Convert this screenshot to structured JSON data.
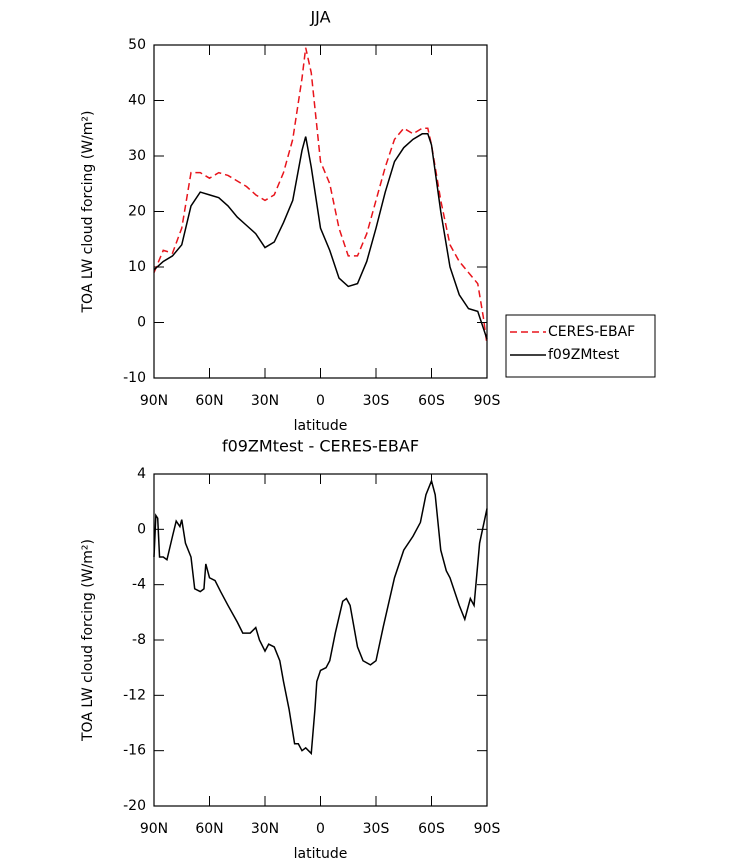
{
  "chart_data": [
    {
      "type": "line",
      "title": "JJA",
      "xlabel": "latitude",
      "ylabel": "TOA LW cloud forcing (W/m²)",
      "x": [
        90,
        85,
        80,
        75,
        70,
        65,
        60,
        55,
        50,
        45,
        40,
        35,
        30,
        25,
        20,
        15,
        10,
        8,
        5,
        0,
        -5,
        -10,
        -15,
        -20,
        -25,
        -30,
        -35,
        -40,
        -45,
        -50,
        -55,
        -58,
        -60,
        -65,
        -70,
        -75,
        -80,
        -85,
        -88,
        -90
      ],
      "series": [
        {
          "name": "CERES-EBAF",
          "color": "#e8141b",
          "dashed": true,
          "values": [
            9,
            13,
            12.5,
            17,
            27,
            27,
            26,
            27,
            26.5,
            25.5,
            24.5,
            23,
            22,
            23,
            27,
            33,
            44,
            49.5,
            45,
            29,
            25,
            17,
            12,
            12,
            16,
            22,
            28,
            33,
            35,
            34,
            35,
            35,
            32,
            22,
            14,
            11,
            9,
            7,
            1,
            -4
          ]
        },
        {
          "name": "f09ZMtest",
          "color": "#000000",
          "dashed": false,
          "values": [
            9.5,
            11,
            12,
            14,
            21,
            23.5,
            23,
            22.5,
            21,
            19,
            17.5,
            16,
            13.5,
            14.5,
            18,
            22,
            31,
            33.5,
            28,
            17,
            13,
            8,
            6.5,
            7,
            11,
            17,
            23.5,
            29,
            31.5,
            33,
            34,
            34,
            32,
            20,
            10,
            5,
            2.5,
            2,
            -1,
            -3
          ]
        }
      ],
      "xlim": [
        90,
        -90
      ],
      "xticks": [
        {
          "value": 90,
          "label": "90N"
        },
        {
          "value": 60,
          "label": "60N"
        },
        {
          "value": 30,
          "label": "30N"
        },
        0,
        {
          "value": -30,
          "label": "30S"
        },
        {
          "value": -60,
          "label": "60S"
        },
        {
          "value": -90,
          "label": "90S"
        }
      ],
      "ylim": [
        -10,
        50
      ],
      "yticks": [
        -10,
        0,
        10,
        20,
        30,
        40,
        50
      ],
      "legend": "outside-right"
    },
    {
      "type": "line",
      "title": "f09ZMtest - CERES-EBAF",
      "xlabel": "latitude",
      "ylabel": "TOA LW cloud forcing (W/m²)",
      "x": [
        90,
        89,
        88,
        87,
        85,
        83,
        80,
        78,
        76,
        75,
        73,
        70,
        68,
        65,
        63,
        62,
        60,
        57,
        54,
        50,
        45,
        42,
        38,
        35,
        33,
        30,
        28,
        25,
        22,
        20,
        17,
        14,
        12,
        10,
        8,
        5,
        3,
        2,
        0,
        -3,
        -5,
        -8,
        -12,
        -14,
        -16,
        -18,
        -20,
        -23,
        -27,
        -30,
        -34,
        -40,
        -45,
        -50,
        -54,
        -57,
        -60,
        -62,
        -65,
        -68,
        -70,
        -75,
        -78,
        -81,
        -83,
        -86,
        -90
      ],
      "values": [
        -2,
        1,
        0.8,
        -2,
        -2,
        -2.2,
        -0.5,
        0.6,
        0.2,
        0.7,
        -1,
        -2,
        -4.3,
        -4.5,
        -4.3,
        -2.5,
        -3.5,
        -3.7,
        -4.5,
        -5.5,
        -6.7,
        -7.5,
        -7.5,
        -7.1,
        -8,
        -8.8,
        -8.3,
        -8.5,
        -9.5,
        -11,
        -13,
        -15.5,
        -15.5,
        -16,
        -15.8,
        -16.2,
        -13,
        -11,
        -10.2,
        -10,
        -9.5,
        -7.5,
        -5.2,
        -5,
        -5.5,
        -7,
        -8.5,
        -9.5,
        -9.8,
        -9.5,
        -7,
        -3.5,
        -1.5,
        -0.5,
        0.5,
        2.5,
        3.5,
        2.5,
        -1.5,
        -3,
        -3.5,
        -5.5,
        -6.5,
        -5,
        -5.5,
        -1,
        1.5
      ],
      "color": "#000000",
      "xlim": [
        90,
        -90
      ],
      "xticks": [
        {
          "value": 90,
          "label": "90N"
        },
        {
          "value": 60,
          "label": "60N"
        },
        {
          "value": 30,
          "label": "30N"
        },
        0,
        {
          "value": -30,
          "label": "30S"
        },
        {
          "value": -60,
          "label": "60S"
        },
        {
          "value": -90,
          "label": "90S"
        }
      ],
      "ylim": [
        -20,
        4
      ],
      "yticks": [
        -20,
        -16,
        -12,
        -8,
        -4,
        0,
        4
      ]
    }
  ]
}
